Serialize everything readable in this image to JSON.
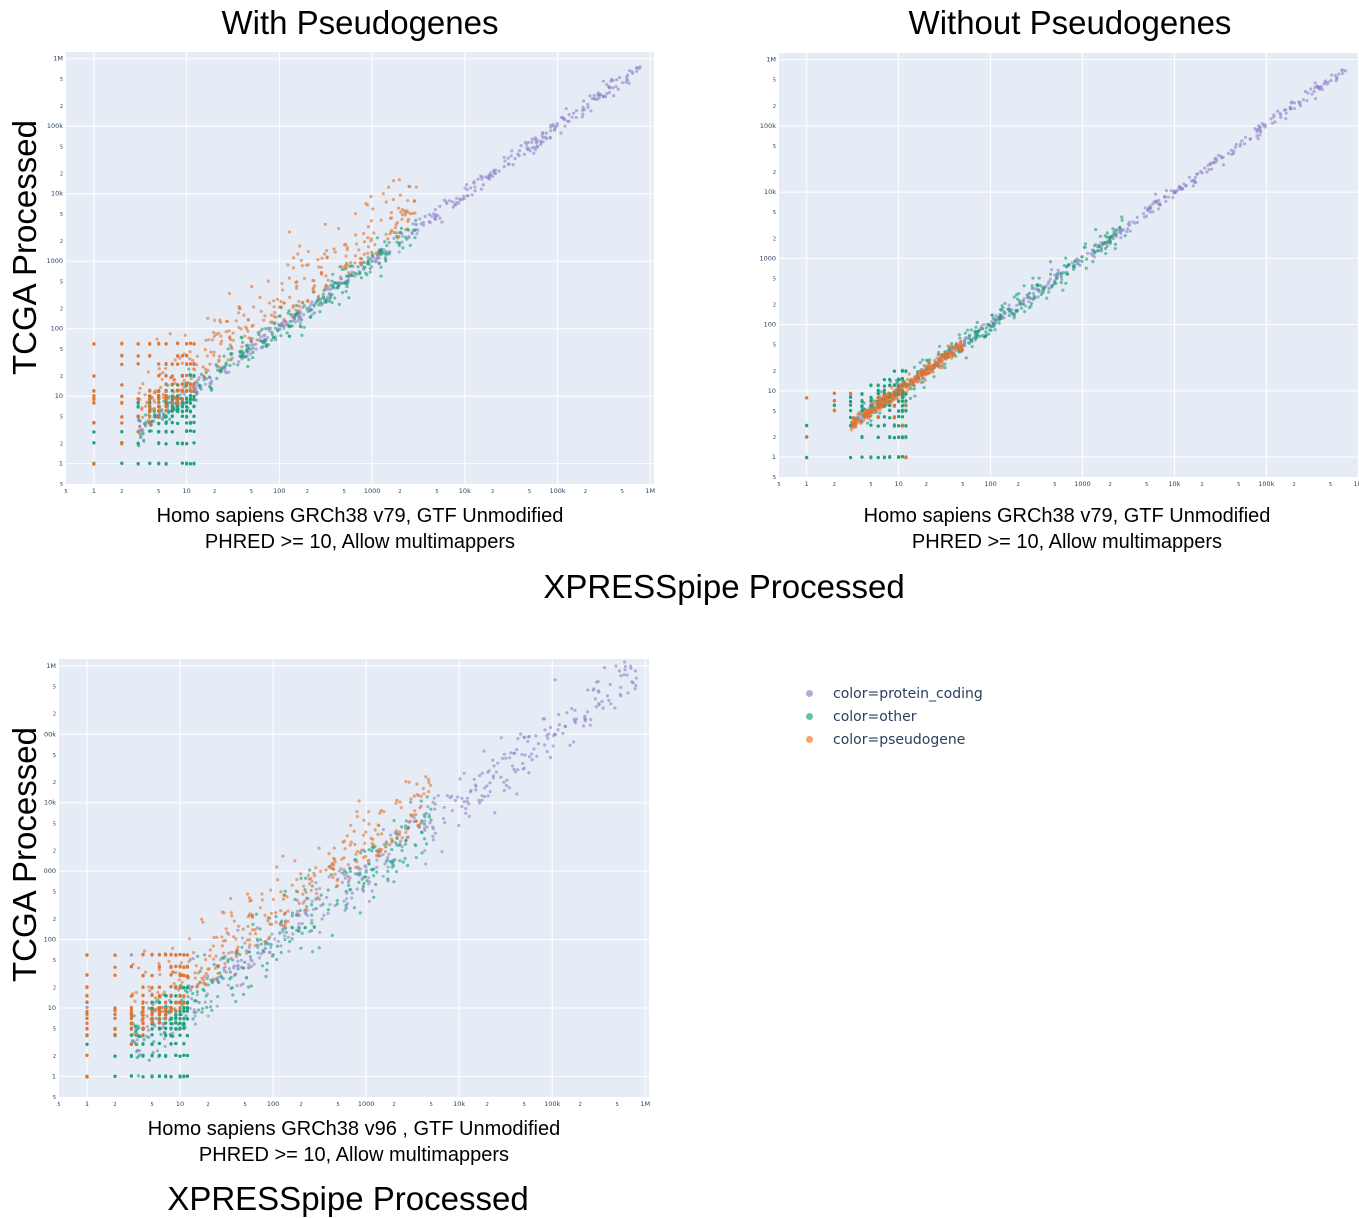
{
  "panels_text": {
    "p1_title": "With Pseudogenes",
    "p2_title": "Without Pseudogenes",
    "p1_sub1": "Homo sapiens GRCh38 v79, GTF Unmodified",
    "p1_sub2": "PHRED >= 10, Allow multimappers",
    "p2_sub1": "Homo sapiens GRCh38 v79, GTF Unmodified",
    "p2_sub2": "PHRED >= 10, Allow multimappers",
    "p3_sub1": "Homo sapiens GRCh38 v96 , GTF Unmodified",
    "p3_sub2": "PHRED >= 10, Allow multimappers",
    "ylabel": "TCGA Processed",
    "xlabel": "XPRESSpipe Processed"
  },
  "legend": [
    {
      "label": "color=protein_coding",
      "color": "#b3acd6"
    },
    {
      "label": "color=other",
      "color": "#66c2a5"
    },
    {
      "label": "color=pseudogene",
      "color": "#f4a66c"
    }
  ],
  "colors": {
    "protein_coding": "#8d84c7",
    "other": "#1b9e77",
    "pseudogene": "#e2722c",
    "plot_bg": "#e5ecf6",
    "grid": "#ffffff",
    "tick": "#2a3f5f"
  },
  "chart_data": [
    {
      "type": "scatter",
      "title": "With Pseudogenes",
      "xlabel": "XPRESSpipe Processed",
      "ylabel": "TCGA Processed",
      "subtitle": [
        "Homo sapiens GRCh38 v79, GTF Unmodified",
        "PHRED >= 10, Allow multimappers"
      ],
      "xscale": "log",
      "yscale": "log",
      "xlim": [
        0.5,
        1000000
      ],
      "ylim": [
        0.5,
        1000000
      ],
      "x_ticks": [
        "5",
        "1",
        "2",
        "5",
        "10",
        "2",
        "5",
        "100",
        "2",
        "5",
        "1000",
        "2",
        "5",
        "10k",
        "2",
        "5",
        "100k",
        "2",
        "5",
        "1M"
      ],
      "y_ticks": [
        "5",
        "1",
        "2",
        "5",
        "10",
        "2",
        "5",
        "100",
        "2",
        "5",
        "1000",
        "2",
        "5",
        "10k",
        "2",
        "5",
        "100k",
        "2",
        "5",
        "1M"
      ],
      "grid": true,
      "series": [
        {
          "name": "color=protein_coding",
          "trend": "y≈x",
          "x_range": [
            1,
            800000
          ],
          "spread_dex": 0.06
        },
        {
          "name": "color=other",
          "trend": "y≈x",
          "x_range": [
            1,
            3000
          ],
          "spread_dex": 0.12
        },
        {
          "name": "color=pseudogene",
          "trend": "y above x",
          "x_range": [
            1,
            3000
          ],
          "spread_dex": 0.45
        }
      ]
    },
    {
      "type": "scatter",
      "title": "Without Pseudogenes",
      "xlabel": "XPRESSpipe Processed",
      "ylabel": "TCGA Processed",
      "subtitle": [
        "Homo sapiens GRCh38 v79, GTF Unmodified",
        "PHRED >= 10, Allow multimappers"
      ],
      "xscale": "log",
      "yscale": "log",
      "xlim": [
        0.5,
        1000000
      ],
      "ylim": [
        0.5,
        1000000
      ],
      "x_ticks": [
        "5",
        "1",
        "2",
        "5",
        "10",
        "2",
        "5",
        "100",
        "2",
        "5",
        "1000",
        "2",
        "5",
        "10k",
        "2",
        "5",
        "100k",
        "2",
        "5",
        "1M"
      ],
      "y_ticks": [
        "5",
        "1",
        "2",
        "5",
        "10",
        "2",
        "5",
        "100",
        "2",
        "5",
        "1000",
        "2",
        "5",
        "10k",
        "2",
        "5",
        "100k",
        "2",
        "5",
        "1M"
      ],
      "grid": true,
      "series": [
        {
          "name": "color=protein_coding",
          "trend": "y≈x",
          "x_range": [
            1,
            800000
          ],
          "spread_dex": 0.05
        },
        {
          "name": "color=other",
          "trend": "y≈x",
          "x_range": [
            1,
            3000
          ],
          "spread_dex": 0.1
        },
        {
          "name": "color=pseudogene",
          "trend": "y≈x",
          "x_range": [
            1,
            50
          ],
          "spread_dex": 0.05
        }
      ]
    },
    {
      "type": "scatter",
      "title": "",
      "xlabel": "XPRESSpipe Processed",
      "ylabel": "TCGA Processed",
      "subtitle": [
        "Homo sapiens GRCh38 v96 , GTF Unmodified",
        "PHRED >= 10, Allow multimappers"
      ],
      "xscale": "log",
      "yscale": "log",
      "xlim": [
        0.5,
        1000000
      ],
      "ylim": [
        0.5,
        1000000
      ],
      "x_ticks": [
        "5",
        "1",
        "2",
        "5",
        "10",
        "2",
        "5",
        "100",
        "2",
        "5",
        "1000",
        "2",
        "5",
        "10k",
        "2",
        "5",
        "100k",
        "2",
        "5",
        "1M"
      ],
      "y_ticks": [
        "5",
        "1",
        "2",
        "5",
        "10",
        "2",
        "5",
        "100",
        "2",
        "5",
        "000",
        "2",
        "5",
        "10k",
        "2",
        "5",
        "00k",
        "2",
        "5",
        "1M"
      ],
      "grid": true,
      "series": [
        {
          "name": "color=protein_coding",
          "trend": "y≈x",
          "x_range": [
            1,
            800000
          ],
          "spread_dex": 0.2
        },
        {
          "name": "color=other",
          "trend": "y≈x",
          "x_range": [
            1,
            5000
          ],
          "spread_dex": 0.25
        },
        {
          "name": "color=pseudogene",
          "trend": "y above x",
          "x_range": [
            1,
            5000
          ],
          "spread_dex": 0.45
        }
      ]
    }
  ]
}
